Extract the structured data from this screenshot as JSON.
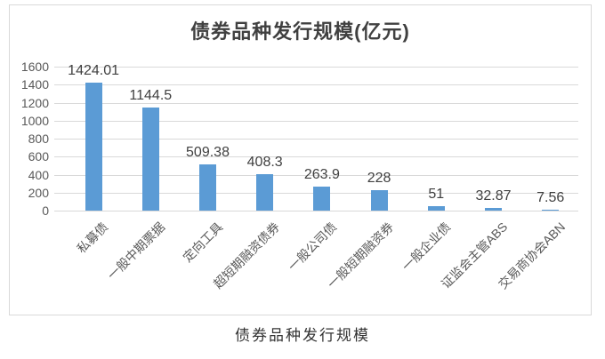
{
  "page": {
    "background": "#ffffff"
  },
  "chart_data": {
    "type": "bar",
    "title": "债券品种发行规模(亿元)",
    "caption": "债券品种发行规模",
    "categories": [
      "私募债",
      "一般中期票据",
      "定向工具",
      "超短期融资债券",
      "一般公司债",
      "一般短期融资券",
      "一般企业债",
      "证监会主管ABS",
      "交易商协会ABN"
    ],
    "values": [
      1424.01,
      1144.5,
      509.38,
      408.3,
      263.9,
      228,
      51,
      32.87,
      7.56
    ],
    "value_labels": [
      "1424.01",
      "1144.5",
      "509.38",
      "408.3",
      "263.9",
      "228",
      "51",
      "32.87",
      "7.56"
    ],
    "ylabel": "",
    "xlabel": "",
    "yticks": [
      0,
      200,
      400,
      600,
      800,
      1000,
      1200,
      1400,
      1600
    ],
    "ylim": [
      0,
      1600
    ],
    "grid": true,
    "legend_position": "none",
    "bar_color": "#5b9bd5",
    "gridline_color": "#d9d9d9",
    "frame_border_color": "#d9d9d9",
    "axis_tick_color": "#595959",
    "category_label_color": "#595959",
    "value_label_color": "#404040",
    "title_color": "#404040"
  }
}
